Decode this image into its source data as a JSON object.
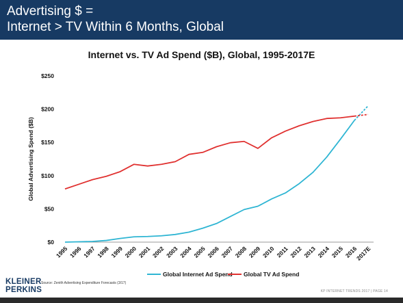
{
  "header": {
    "line1": "Advertising $ =",
    "line2": "Internet > TV Within 6 Months, Global"
  },
  "brand": {
    "line1": "KLEINER",
    "line2": "PERKINS"
  },
  "source": "Source: Zenith Advertising Expenditure Forecasts (3/17)",
  "footer": "KP INTERNET TRENDS 2017  |  PAGE 14",
  "colors": {
    "header_bg": "#173a63",
    "internet": "#2eb5d3",
    "tv": "#e0302f"
  },
  "chart_data": {
    "type": "line",
    "title": "Internet vs. TV Ad Spend ($B), Global, 1995-2017E",
    "ylabel": "Global Advertising Spend ($B)",
    "xlabel": "",
    "ylim": [
      0,
      250
    ],
    "yticks": [
      "$0",
      "$50",
      "$100",
      "$150",
      "$200",
      "$250"
    ],
    "ytick_values": [
      0,
      50,
      100,
      150,
      200,
      250
    ],
    "categories": [
      "1995",
      "1996",
      "1997",
      "1998",
      "1999",
      "2000",
      "2001",
      "2002",
      "2003",
      "2004",
      "2005",
      "2006",
      "2007",
      "2008",
      "2009",
      "2010",
      "2011",
      "2012",
      "2013",
      "2014",
      "2015",
      "2016",
      "2017E"
    ],
    "series": [
      {
        "name": "Global Internet Ad Spend",
        "color": "#2eb5d3",
        "values": [
          0,
          0.5,
          1,
          2.5,
          5.5,
          8,
          8.5,
          9.5,
          11.5,
          15,
          21,
          28,
          38.5,
          49,
          54,
          65,
          74,
          88,
          105,
          128,
          155,
          183,
          205
        ],
        "projected_last": true
      },
      {
        "name": "Global TV Ad Spend",
        "color": "#e0302f",
        "values": [
          80,
          87,
          94,
          99,
          106,
          117,
          114.5,
          117,
          121,
          132,
          135,
          143.5,
          149.5,
          151.5,
          141,
          157,
          167,
          175,
          181.5,
          186,
          187,
          189.5,
          192
        ],
        "projected_last": true
      }
    ],
    "legend_position": "bottom",
    "grid": false
  }
}
